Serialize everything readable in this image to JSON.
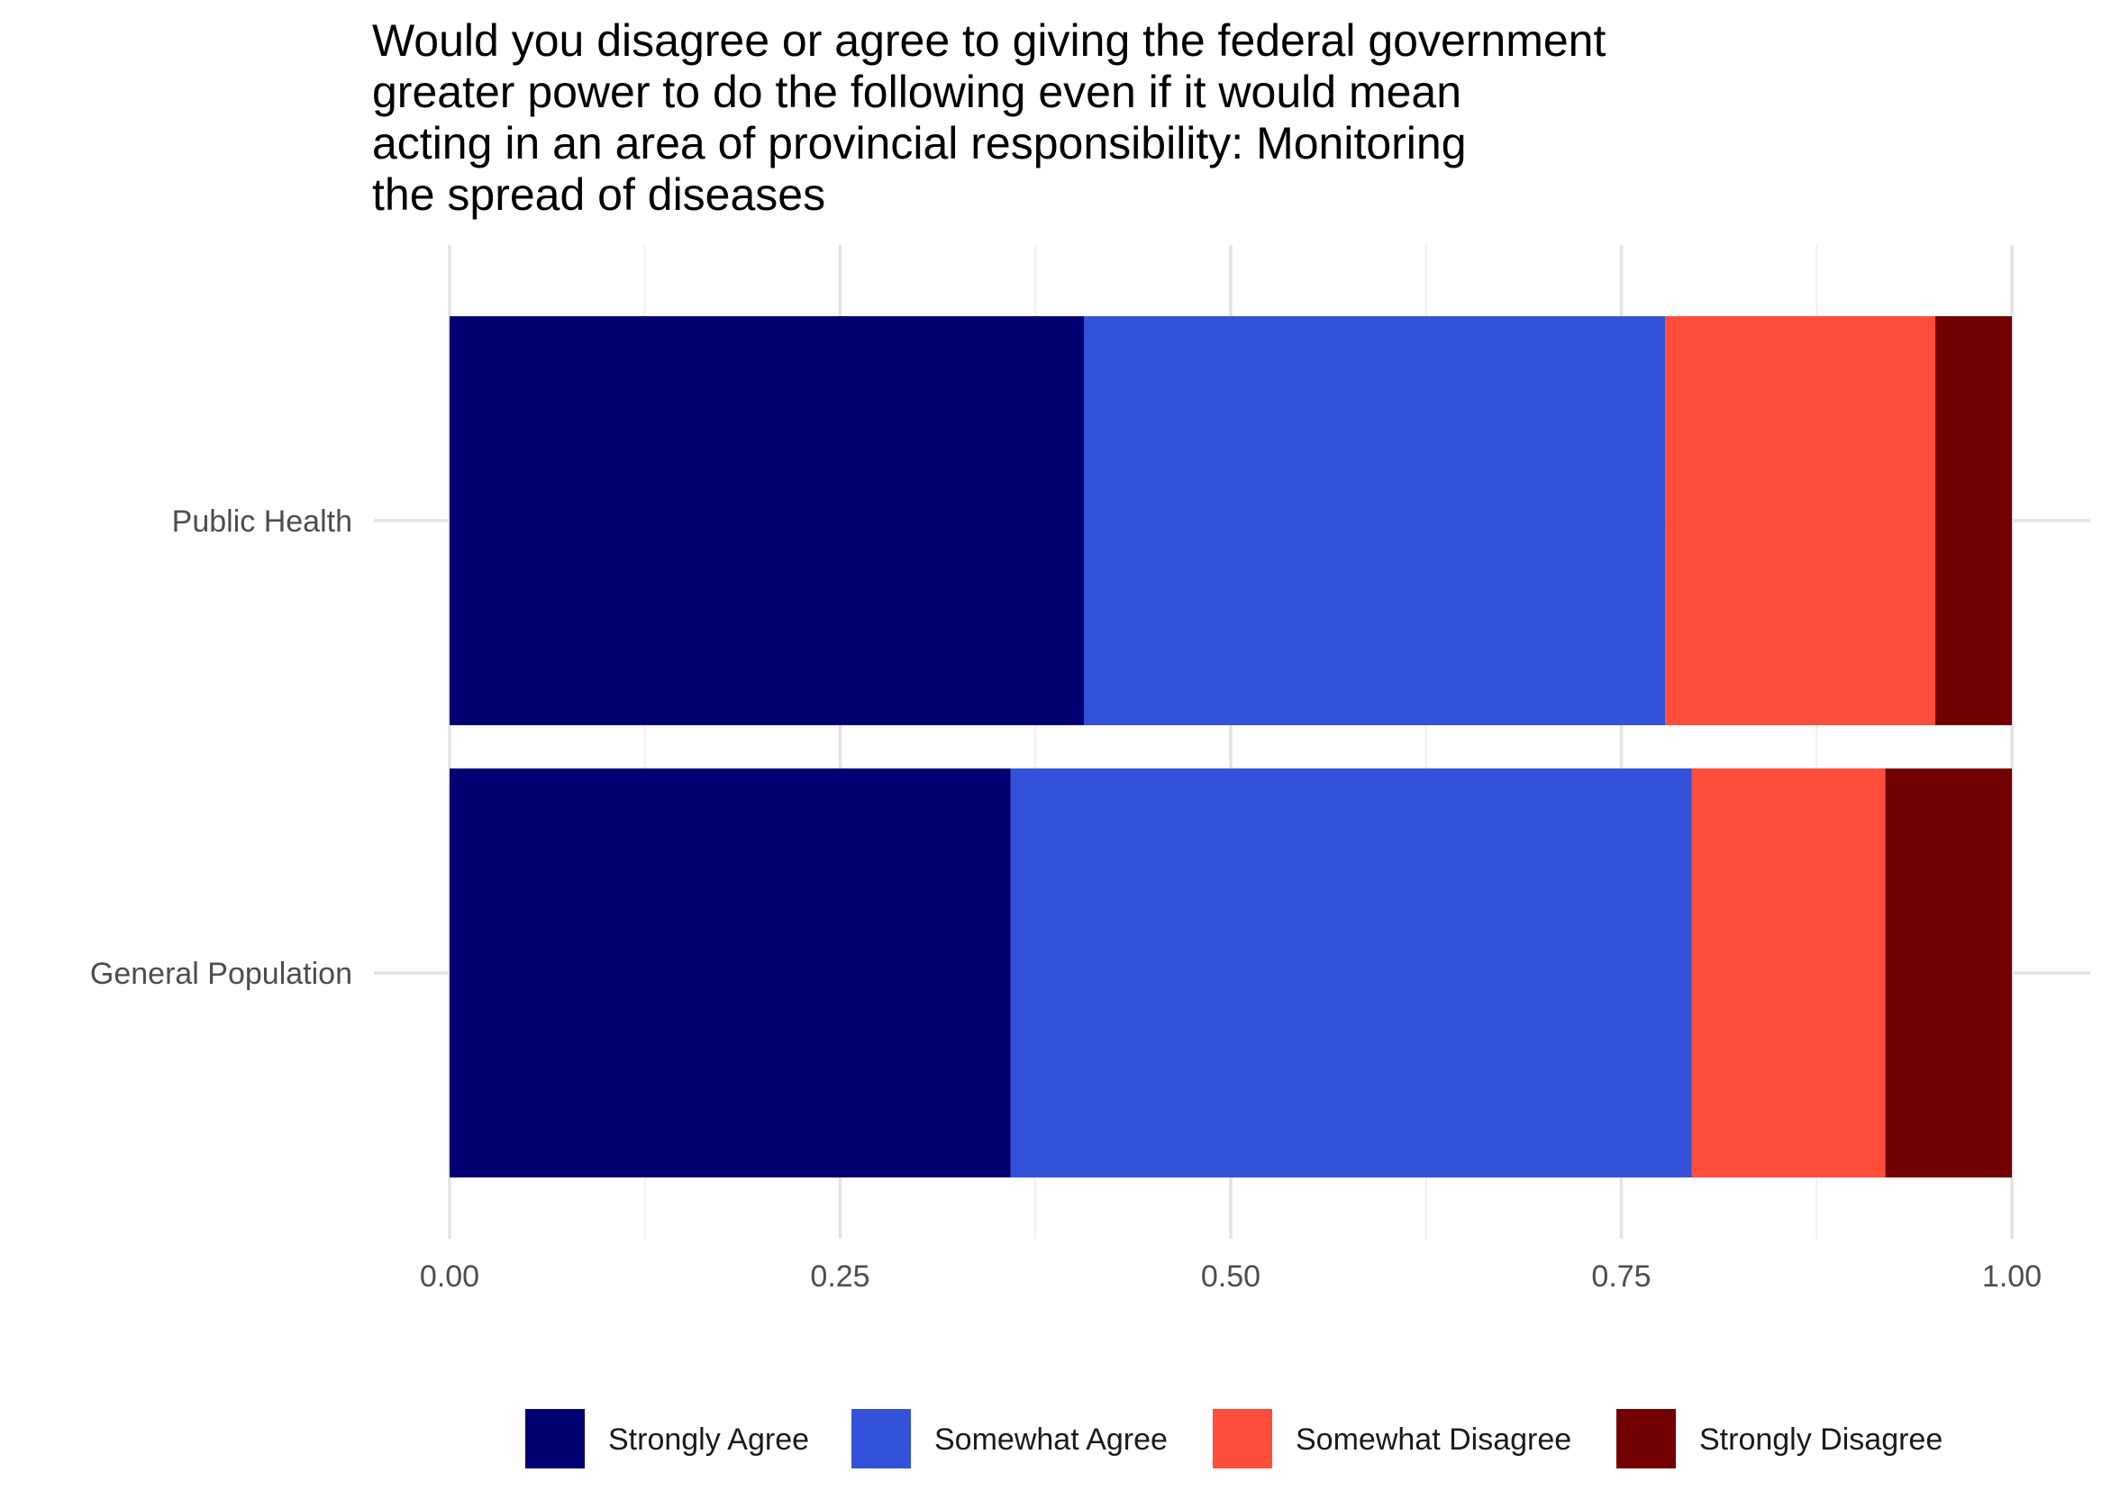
{
  "chart_data": {
    "type": "bar",
    "orientation": "horizontal",
    "stacked": true,
    "title_lines": [
      "Would you disagree or agree to giving the federal government",
      "greater power to do the following even if it would mean",
      "acting in an area of provincial responsibility: Monitoring",
      "the spread of diseases"
    ],
    "xlabel": "",
    "ylabel": "",
    "categories": [
      "Public Health",
      "General Population"
    ],
    "xlim": [
      0,
      1
    ],
    "x_ticks": [
      0,
      0.25,
      0.5,
      0.75,
      1
    ],
    "x_tick_labels": [
      "0.00",
      "0.25",
      "0.50",
      "0.75",
      "1.00"
    ],
    "grid": true,
    "legend_position": "bottom",
    "series": [
      {
        "name": "Strongly Agree",
        "color": "#000073",
        "values": [
          0.406,
          0.359
        ]
      },
      {
        "name": "Somewhat Agree",
        "color": "#3352d9",
        "values": [
          0.372,
          0.436
        ]
      },
      {
        "name": "Somewhat Disagree",
        "color": "#ff4d3b",
        "values": [
          0.173,
          0.124
        ]
      },
      {
        "name": "Strongly Disagree",
        "color": "#730000",
        "values": [
          0.049,
          0.081
        ]
      }
    ]
  }
}
